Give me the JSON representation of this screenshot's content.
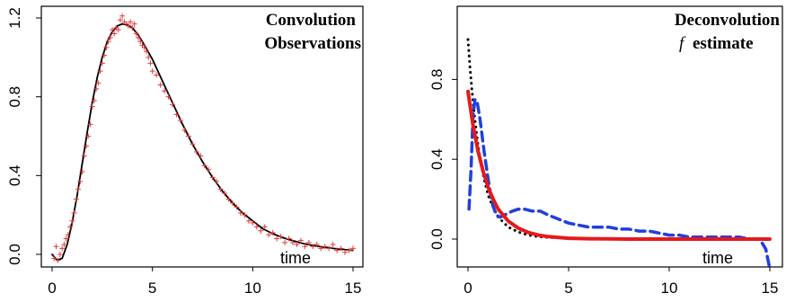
{
  "chart_data": [
    {
      "type": "line",
      "xlabel": "time",
      "xlim": [
        0,
        15
      ],
      "ylim": [
        0,
        1.2
      ],
      "xticks": [
        "0",
        "5",
        "10",
        "15"
      ],
      "yticks": [
        "0.0",
        "0.4",
        "0.8",
        "1.2"
      ],
      "legend": [
        "Convolution",
        "Observations"
      ],
      "legend_placement": "top-right",
      "grid": false,
      "series": [
        {
          "style": "line",
          "color": "#000000",
          "x": [
            0,
            0.25,
            0.5,
            0.75,
            1,
            1.25,
            1.5,
            1.75,
            2,
            2.25,
            2.5,
            2.75,
            3,
            3.25,
            3.5,
            3.75,
            4,
            4.25,
            4.5,
            5,
            5.5,
            6,
            6.5,
            7,
            7.5,
            8,
            8.5,
            9,
            9.5,
            10,
            10.5,
            11,
            11.5,
            12,
            12.5,
            13,
            13.5,
            14,
            14.5,
            15
          ],
          "y": [
            0.0,
            -0.03,
            -0.02,
            0.05,
            0.16,
            0.3,
            0.46,
            0.62,
            0.77,
            0.9,
            1.0,
            1.08,
            1.13,
            1.16,
            1.17,
            1.165,
            1.15,
            1.12,
            1.08,
            0.99,
            0.88,
            0.77,
            0.66,
            0.56,
            0.47,
            0.39,
            0.32,
            0.26,
            0.21,
            0.17,
            0.13,
            0.105,
            0.085,
            0.07,
            0.055,
            0.045,
            0.037,
            0.03,
            0.025,
            0.02
          ]
        },
        {
          "style": "points",
          "marker": "+",
          "color": "#e03a3a",
          "x": [
            0.1,
            0.2,
            0.3,
            0.4,
            0.5,
            0.6,
            0.7,
            0.8,
            0.9,
            1.0,
            1.1,
            1.2,
            1.3,
            1.4,
            1.5,
            1.6,
            1.7,
            1.8,
            1.9,
            2.0,
            2.1,
            2.2,
            2.3,
            2.4,
            2.5,
            2.6,
            2.7,
            2.8,
            2.9,
            3.0,
            3.1,
            3.2,
            3.3,
            3.4,
            3.5,
            3.6,
            3.7,
            3.8,
            3.9,
            4.0,
            4.1,
            4.2,
            4.3,
            4.4,
            4.5,
            4.6,
            4.7,
            4.8,
            4.9,
            5.0,
            5.2,
            5.4,
            5.6,
            5.8,
            6.0,
            6.2,
            6.4,
            6.6,
            6.8,
            7.0,
            7.2,
            7.4,
            7.6,
            7.8,
            8.0,
            8.2,
            8.4,
            8.6,
            8.8,
            9.0,
            9.2,
            9.4,
            9.6,
            9.8,
            10.0,
            10.2,
            10.4,
            10.6,
            10.8,
            11.0,
            11.2,
            11.4,
            11.6,
            11.8,
            12.0,
            12.2,
            12.4,
            12.6,
            12.8,
            13.0,
            13.2,
            13.4,
            13.6,
            13.8,
            14.0,
            14.2,
            14.4,
            14.6,
            14.8,
            15.0
          ],
          "y": [
            -0.02,
            0.04,
            -0.03,
            0.0,
            0.03,
            0.05,
            0.08,
            0.1,
            0.14,
            0.17,
            0.21,
            0.28,
            0.33,
            0.37,
            0.42,
            0.5,
            0.55,
            0.6,
            0.66,
            0.75,
            0.78,
            0.84,
            0.87,
            0.93,
            0.97,
            1.01,
            1.05,
            1.08,
            1.1,
            1.14,
            1.12,
            1.15,
            1.14,
            1.19,
            1.21,
            1.18,
            1.17,
            1.16,
            1.18,
            1.15,
            1.17,
            1.12,
            1.1,
            1.08,
            1.06,
            1.05,
            1.03,
            1.0,
            0.97,
            0.93,
            0.91,
            0.86,
            0.83,
            0.8,
            0.76,
            0.71,
            0.68,
            0.63,
            0.6,
            0.56,
            0.52,
            0.5,
            0.45,
            0.43,
            0.39,
            0.37,
            0.33,
            0.31,
            0.28,
            0.26,
            0.24,
            0.21,
            0.2,
            0.17,
            0.16,
            0.14,
            0.12,
            0.14,
            0.1,
            0.11,
            0.08,
            0.09,
            0.06,
            0.08,
            0.06,
            0.05,
            0.07,
            0.04,
            0.06,
            0.04,
            0.05,
            0.03,
            0.04,
            0.03,
            0.05,
            0.02,
            0.03,
            0.01,
            0.02,
            0.03
          ]
        }
      ]
    },
    {
      "type": "line",
      "xlabel": "time",
      "xlim": [
        0,
        15
      ],
      "ylim": [
        0,
        1.0
      ],
      "xticks": [
        "0",
        "5",
        "10",
        "15"
      ],
      "yticks": [
        "0.0",
        "0.4",
        "0.8"
      ],
      "legend": [
        "Deconvolution",
        "f",
        "estimate"
      ],
      "legend_placement": "top-right",
      "grid": false,
      "series": [
        {
          "style": "dotted",
          "color": "#000000",
          "x": [
            0,
            0.1,
            0.2,
            0.3,
            0.4,
            0.5,
            0.6,
            0.7,
            0.8,
            1.0,
            1.2,
            1.5,
            1.8,
            2.0,
            2.5,
            3,
            3.5,
            4,
            5,
            6,
            7,
            8,
            9,
            10,
            11,
            12,
            13,
            14,
            15
          ],
          "y": [
            1.0,
            0.86,
            0.74,
            0.64,
            0.55,
            0.47,
            0.41,
            0.35,
            0.3,
            0.22,
            0.17,
            0.11,
            0.08,
            0.06,
            0.035,
            0.02,
            0.012,
            0.008,
            0.004,
            0.002,
            0.001,
            0.0,
            0.0,
            0.0,
            0.0,
            0.0,
            0.0,
            0.0,
            0.0
          ]
        },
        {
          "style": "dashed",
          "color": "#1f3fe0",
          "x": [
            0.05,
            0.15,
            0.25,
            0.35,
            0.45,
            0.6,
            0.8,
            1.0,
            1.2,
            1.4,
            1.6,
            1.8,
            2.0,
            2.2,
            2.5,
            2.8,
            3.2,
            3.6,
            4.0,
            4.5,
            5.0,
            5.5,
            6.0,
            6.5,
            7.0,
            7.5,
            8.0,
            8.5,
            9.0,
            9.5,
            10.0,
            10.5,
            11.0,
            11.5,
            12.0,
            12.5,
            13.0,
            13.5,
            14.0,
            14.5,
            14.8,
            15.0
          ],
          "y": [
            0.15,
            0.35,
            0.62,
            0.7,
            0.69,
            0.6,
            0.44,
            0.3,
            0.18,
            0.12,
            0.11,
            0.12,
            0.13,
            0.14,
            0.15,
            0.15,
            0.14,
            0.14,
            0.12,
            0.1,
            0.08,
            0.07,
            0.06,
            0.06,
            0.06,
            0.05,
            0.05,
            0.04,
            0.04,
            0.03,
            0.02,
            0.02,
            0.01,
            0.01,
            0.01,
            0.01,
            0.01,
            0.01,
            0.0,
            0.0,
            -0.05,
            -0.15
          ]
        },
        {
          "style": "line",
          "color": "#e41a1c",
          "x": [
            0,
            0.25,
            0.5,
            0.75,
            1,
            1.25,
            1.5,
            1.75,
            2,
            2.5,
            3,
            3.5,
            4,
            5,
            6,
            7,
            8,
            9,
            10,
            11,
            12,
            13,
            14,
            15
          ],
          "y": [
            0.74,
            0.57,
            0.44,
            0.34,
            0.26,
            0.2,
            0.15,
            0.12,
            0.09,
            0.055,
            0.033,
            0.02,
            0.012,
            0.004,
            0.002,
            0.001,
            0.0,
            0.0,
            0.0,
            0.0,
            0.0,
            0.0,
            0.0,
            0.0
          ]
        }
      ]
    }
  ]
}
